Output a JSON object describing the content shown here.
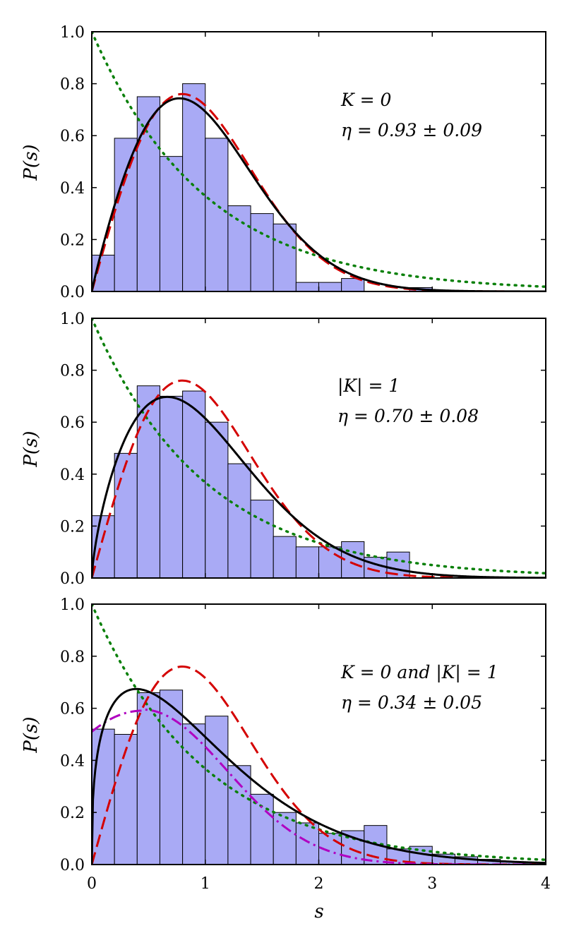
{
  "chart_data": [
    {
      "type": "bar",
      "panel": "top",
      "ylabel": "P(s)",
      "xlabel": "",
      "xlim": [
        0,
        4
      ],
      "ylim": [
        0,
        1.0
      ],
      "yticks": [
        "0.0",
        "0.2",
        "0.4",
        "0.6",
        "0.8",
        "1.0"
      ],
      "xticks": [],
      "bin_width": 0.2,
      "bin_starts": [
        0.0,
        0.2,
        0.4,
        0.6,
        0.8,
        1.0,
        1.2,
        1.4,
        1.6,
        1.8,
        2.0,
        2.2,
        2.4,
        2.6,
        2.8,
        3.0,
        3.2,
        3.4,
        3.6,
        3.8
      ],
      "values": [
        0.14,
        0.59,
        0.75,
        0.52,
        0.8,
        0.59,
        0.33,
        0.3,
        0.26,
        0.035,
        0.035,
        0.05,
        0.0,
        0.0,
        0.015,
        0.0,
        0.0,
        0.0,
        0.0,
        0.0
      ],
      "annotation": {
        "line1": "K = 0",
        "line2": "η = 0.93 ± 0.09"
      },
      "fit": {
        "model": "brody",
        "eta": 0.93
      },
      "curves": [
        "poisson",
        "wigner",
        "fit"
      ]
    },
    {
      "type": "bar",
      "panel": "middle",
      "ylabel": "P(s)",
      "xlabel": "",
      "xlim": [
        0,
        4
      ],
      "ylim": [
        0,
        1.0
      ],
      "yticks": [
        "0.0",
        "0.2",
        "0.4",
        "0.6",
        "0.8",
        "1.0"
      ],
      "xticks": [],
      "bin_width": 0.2,
      "bin_starts": [
        0.0,
        0.2,
        0.4,
        0.6,
        0.8,
        1.0,
        1.2,
        1.4,
        1.6,
        1.8,
        2.0,
        2.2,
        2.4,
        2.6,
        2.8,
        3.0,
        3.2,
        3.4,
        3.6,
        3.8
      ],
      "values": [
        0.24,
        0.48,
        0.74,
        0.7,
        0.72,
        0.6,
        0.44,
        0.3,
        0.16,
        0.12,
        0.12,
        0.14,
        0.08,
        0.1,
        0.0,
        0.0,
        0.0,
        0.0,
        0.0,
        0.0
      ],
      "annotation": {
        "line1": "|K| = 1",
        "line2": "η = 0.70 ± 0.08"
      },
      "fit": {
        "model": "brody",
        "eta": 0.7
      },
      "curves": [
        "poisson",
        "wigner",
        "fit"
      ]
    },
    {
      "type": "bar",
      "panel": "bottom",
      "ylabel": "P(s)",
      "xlabel": "s",
      "xlim": [
        0,
        4
      ],
      "ylim": [
        0,
        1.0
      ],
      "yticks": [
        "0.0",
        "0.2",
        "0.4",
        "0.6",
        "0.8",
        "1.0"
      ],
      "xticks": [
        "0",
        "1",
        "2",
        "3",
        "4"
      ],
      "bin_width": 0.2,
      "bin_starts": [
        0.0,
        0.2,
        0.4,
        0.6,
        0.8,
        1.0,
        1.2,
        1.4,
        1.6,
        1.8,
        2.0,
        2.2,
        2.4,
        2.6,
        2.8,
        3.0,
        3.2,
        3.4,
        3.6,
        3.8
      ],
      "values": [
        0.52,
        0.5,
        0.66,
        0.67,
        0.54,
        0.57,
        0.38,
        0.27,
        0.2,
        0.16,
        0.12,
        0.13,
        0.15,
        0.06,
        0.07,
        0.04,
        0.03,
        0.02,
        0.01,
        0.005
      ],
      "annotation": {
        "line1": "K = 0 and |K| = 1",
        "line2": "η = 0.34 ± 0.05"
      },
      "fit": {
        "model": "brody",
        "eta": 0.34
      },
      "curves": [
        "poisson",
        "wigner",
        "fit",
        "gaussian-ensemble-mix"
      ]
    }
  ],
  "colors": {
    "bar_fill": "#a9aaf5",
    "bar_edge": "#000000",
    "poisson": "#0a800a",
    "wigner": "#d40000",
    "fit": "#000000",
    "mixed": "#b000c0"
  }
}
